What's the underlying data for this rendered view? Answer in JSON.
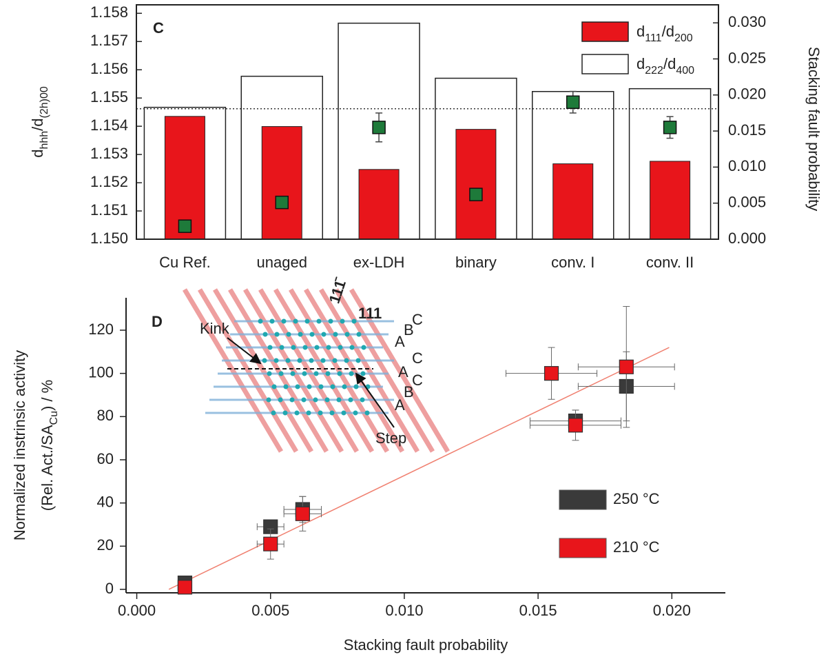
{
  "chart_data": [
    {
      "type": "bar",
      "label": "C",
      "categories": [
        "Cu Ref.",
        "unaged",
        "ex-LDH",
        "binary",
        "conv. I",
        "conv. II"
      ],
      "ylim": [
        1.15,
        1.1583
      ],
      "yticks": [
        {
          "value": 1.15,
          "label": "1.150"
        },
        {
          "value": 1.151,
          "label": "1.151"
        },
        {
          "value": 1.152,
          "label": "1.152"
        },
        {
          "value": 1.153,
          "label": "1.153"
        },
        {
          "value": 1.154,
          "label": "1.154"
        },
        {
          "value": 1.155,
          "label": "1.155"
        },
        {
          "value": 1.156,
          "label": "1.156"
        },
        {
          "value": 1.157,
          "label": "1.157"
        },
        {
          "value": 1.158,
          "label": "1.158"
        }
      ],
      "y2lim": [
        0,
        0.0325
      ],
      "y2ticks": [
        {
          "value": 0,
          "label": "0.000"
        },
        {
          "value": 0.005,
          "label": "0.005"
        },
        {
          "value": 0.01,
          "label": "0.010"
        },
        {
          "value": 0.015,
          "label": "0.015"
        },
        {
          "value": 0.02,
          "label": "0.020"
        },
        {
          "value": 0.025,
          "label": "0.025"
        },
        {
          "value": 0.03,
          "label": "0.030"
        }
      ],
      "ylabel": [
        "d",
        "hhh",
        "/d",
        "(2h)00"
      ],
      "y2label": "Stacking fault probability",
      "y2color": "#1c8a33",
      "reference_line": 1.15462,
      "series": [
        {
          "name": [
            "d",
            "111",
            "/d",
            "200"
          ],
          "color": "#e8151b",
          "values": [
            1.15435,
            1.15399,
            1.15247,
            1.15389,
            1.15267,
            1.15276
          ]
        },
        {
          "name": [
            "d",
            "222",
            "/d",
            "400"
          ],
          "color": "#ffffff",
          "values": [
            1.15467,
            1.15577,
            1.15765,
            1.1557,
            1.15523,
            1.15533
          ]
        },
        {
          "axis": "y2",
          "color": "#1e7a3a",
          "values": [
            0.0018,
            0.0051,
            0.0155,
            0.0062,
            0.019,
            0.0155
          ],
          "errors": [
            0.0005,
            0.0005,
            0.002,
            0.0005,
            0.0015,
            0.0015
          ]
        }
      ]
    },
    {
      "type": "scatter",
      "label": "D",
      "xlim": [
        -0.0004,
        0.022
      ],
      "ylim": [
        -1.6,
        135
      ],
      "xticks": [
        {
          "value": 0,
          "label": "0.000"
        },
        {
          "value": 0.005,
          "label": "0.005"
        },
        {
          "value": 0.01,
          "label": "0.010"
        },
        {
          "value": 0.015,
          "label": "0.015"
        },
        {
          "value": 0.02,
          "label": "0.020"
        }
      ],
      "yticks": [
        0,
        20,
        40,
        60,
        80,
        100,
        120
      ],
      "xlabel": "Stacking fault probability",
      "ylabel": [
        "Normalized instrinsic activity",
        "(Rel. Act./SA",
        "Cu",
        ") / %"
      ],
      "series": [
        {
          "name": "250 °C",
          "color": "#3a3a3a",
          "x": [
            0.0018,
            0.005,
            0.0062,
            0.0164,
            0.0183
          ],
          "values": [
            3,
            29,
            37,
            78,
            94
          ],
          "xerr": [
            0.0002,
            0.0005,
            0.0007,
            0.0017,
            0.0018
          ],
          "yerr": [
            1,
            3,
            6,
            5,
            16
          ]
        },
        {
          "name": "210 °C",
          "color": "#e8151b",
          "x": [
            0.0018,
            0.005,
            0.0062,
            0.0155,
            0.0164,
            0.0183
          ],
          "values": [
            1,
            21,
            35,
            100,
            76,
            103
          ],
          "xerr": [
            0.0002,
            0.0005,
            0.0007,
            0.0017,
            0.0017,
            0.0018
          ],
          "yerr": [
            1,
            7,
            8,
            12,
            7,
            28
          ]
        }
      ],
      "fit": {
        "color": "#f08070",
        "x": [
          0.0012,
          0.0199
        ],
        "y": [
          0,
          112
        ]
      },
      "inset": {
        "blue_plane": "111",
        "red_plane": "111̄",
        "kink": "Kink",
        "step": "Step",
        "stacking": [
          "C",
          "B",
          "A",
          "C",
          "A",
          "C",
          "B",
          "A"
        ]
      }
    }
  ]
}
